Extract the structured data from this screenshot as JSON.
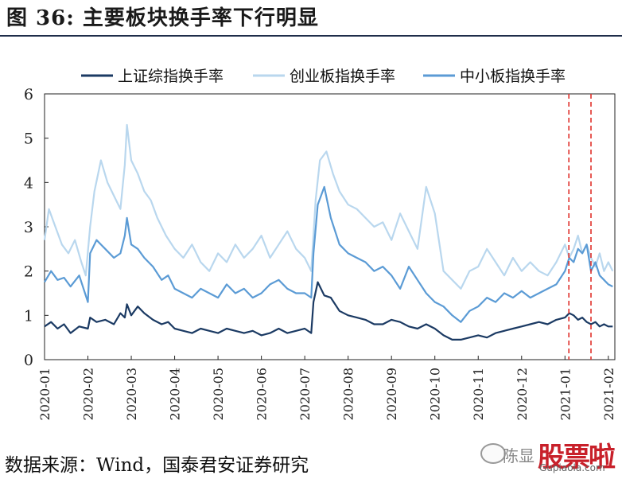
{
  "header": {
    "title": "图 36:  主要板块换手率下行明显"
  },
  "footer": {
    "source": "数据来源：Wind，国泰君安证券研究"
  },
  "watermark": {
    "name": "陈显",
    "logo": "股票啦",
    "url": "Gupiaola.com",
    "icon": "wechat-icon"
  },
  "colors": {
    "sh": "#1b3a63",
    "cy": "#b9d7ee",
    "zx": "#5b9bd5",
    "marker": "#e0302a"
  },
  "chart_data": {
    "type": "line",
    "xlabel": "",
    "ylabel": "",
    "ylim": [
      0,
      6
    ],
    "yticks": [
      "0",
      "1",
      "2",
      "3",
      "4",
      "5",
      "6"
    ],
    "xticks": [
      "2020-01",
      "2020-02",
      "2020-03",
      "2020-04",
      "2020-05",
      "2020-06",
      "2020-07",
      "2020-08",
      "2020-09",
      "2020-10",
      "2020-11",
      "2020-12",
      "2021-01",
      "2021-02"
    ],
    "legend_position": "top",
    "grid": false,
    "vertical_markers": [
      12.09,
      12.6
    ],
    "series": [
      {
        "name": "上证综指换手率",
        "color": "#1b3a63",
        "x": [
          0,
          0.15,
          0.3,
          0.45,
          0.6,
          0.8,
          1.0,
          1.05,
          1.2,
          1.4,
          1.6,
          1.75,
          1.85,
          1.9,
          2.0,
          2.15,
          2.3,
          2.5,
          2.7,
          2.85,
          3.0,
          3.2,
          3.4,
          3.6,
          3.8,
          4.0,
          4.2,
          4.4,
          4.6,
          4.8,
          5.0,
          5.2,
          5.4,
          5.6,
          5.8,
          6.0,
          6.15,
          6.2,
          6.3,
          6.45,
          6.6,
          6.8,
          7.0,
          7.2,
          7.4,
          7.6,
          7.8,
          8.0,
          8.2,
          8.4,
          8.6,
          8.8,
          9.0,
          9.2,
          9.4,
          9.6,
          9.8,
          10.0,
          10.2,
          10.4,
          10.6,
          10.8,
          11.0,
          11.2,
          11.4,
          11.6,
          11.8,
          12.0,
          12.1,
          12.2,
          12.3,
          12.4,
          12.5,
          12.6,
          12.7,
          12.8,
          12.9,
          13.0,
          13.1
        ],
        "values": [
          0.75,
          0.85,
          0.7,
          0.8,
          0.6,
          0.75,
          0.7,
          0.95,
          0.85,
          0.9,
          0.8,
          1.05,
          0.95,
          1.25,
          1.0,
          1.2,
          1.05,
          0.9,
          0.8,
          0.85,
          0.7,
          0.65,
          0.6,
          0.7,
          0.65,
          0.6,
          0.7,
          0.65,
          0.6,
          0.65,
          0.55,
          0.6,
          0.7,
          0.6,
          0.65,
          0.7,
          0.6,
          1.3,
          1.75,
          1.45,
          1.4,
          1.1,
          1.0,
          0.95,
          0.9,
          0.8,
          0.8,
          0.9,
          0.85,
          0.75,
          0.7,
          0.8,
          0.7,
          0.55,
          0.45,
          0.45,
          0.5,
          0.55,
          0.5,
          0.6,
          0.65,
          0.7,
          0.75,
          0.8,
          0.85,
          0.8,
          0.9,
          0.95,
          1.05,
          1.0,
          0.9,
          0.95,
          0.85,
          0.8,
          0.85,
          0.75,
          0.8,
          0.75,
          0.75
        ]
      },
      {
        "name": "创业板指换手率",
        "color": "#b9d7ee",
        "x": [
          0,
          0.1,
          0.25,
          0.4,
          0.55,
          0.7,
          0.85,
          0.95,
          1.05,
          1.15,
          1.3,
          1.45,
          1.6,
          1.75,
          1.85,
          1.9,
          2.0,
          2.15,
          2.3,
          2.45,
          2.6,
          2.8,
          3.0,
          3.2,
          3.4,
          3.6,
          3.8,
          4.0,
          4.2,
          4.4,
          4.6,
          4.8,
          5.0,
          5.2,
          5.4,
          5.6,
          5.8,
          6.0,
          6.15,
          6.25,
          6.35,
          6.5,
          6.65,
          6.8,
          7.0,
          7.2,
          7.4,
          7.6,
          7.8,
          8.0,
          8.2,
          8.4,
          8.6,
          8.8,
          9.0,
          9.2,
          9.4,
          9.6,
          9.8,
          10.0,
          10.2,
          10.4,
          10.6,
          10.8,
          11.0,
          11.2,
          11.4,
          11.6,
          11.8,
          12.0,
          12.1,
          12.2,
          12.3,
          12.4,
          12.5,
          12.6,
          12.7,
          12.8,
          12.9,
          13.0,
          13.1
        ],
        "values": [
          2.7,
          3.4,
          3.0,
          2.6,
          2.4,
          2.7,
          2.2,
          1.9,
          3.0,
          3.8,
          4.5,
          4.0,
          3.7,
          3.4,
          4.4,
          5.3,
          4.5,
          4.2,
          3.8,
          3.6,
          3.2,
          2.8,
          2.5,
          2.3,
          2.6,
          2.2,
          2.0,
          2.4,
          2.2,
          2.6,
          2.3,
          2.5,
          2.8,
          2.3,
          2.6,
          2.9,
          2.5,
          2.3,
          2.0,
          3.6,
          4.5,
          4.7,
          4.2,
          3.8,
          3.5,
          3.4,
          3.2,
          3.0,
          3.1,
          2.7,
          3.3,
          2.9,
          2.5,
          3.9,
          3.3,
          2.0,
          1.8,
          1.6,
          2.0,
          2.1,
          2.5,
          2.2,
          1.9,
          2.3,
          2.0,
          2.2,
          2.0,
          1.9,
          2.2,
          2.6,
          2.3,
          2.5,
          2.8,
          2.4,
          2.6,
          2.3,
          2.1,
          2.4,
          2.0,
          2.2,
          2.0
        ]
      },
      {
        "name": "中小板指换手率",
        "color": "#5b9bd5",
        "x": [
          0,
          0.15,
          0.3,
          0.45,
          0.6,
          0.8,
          1.0,
          1.05,
          1.2,
          1.4,
          1.6,
          1.75,
          1.85,
          1.9,
          2.0,
          2.15,
          2.3,
          2.5,
          2.7,
          2.85,
          3.0,
          3.2,
          3.4,
          3.6,
          3.8,
          4.0,
          4.2,
          4.4,
          4.6,
          4.8,
          5.0,
          5.2,
          5.4,
          5.6,
          5.8,
          6.0,
          6.15,
          6.2,
          6.3,
          6.45,
          6.6,
          6.8,
          7.0,
          7.2,
          7.4,
          7.6,
          7.8,
          8.0,
          8.2,
          8.4,
          8.6,
          8.8,
          9.0,
          9.2,
          9.4,
          9.6,
          9.8,
          10.0,
          10.2,
          10.4,
          10.6,
          10.8,
          11.0,
          11.2,
          11.4,
          11.6,
          11.8,
          12.0,
          12.1,
          12.2,
          12.3,
          12.4,
          12.5,
          12.6,
          12.7,
          12.8,
          12.9,
          13.0,
          13.1
        ],
        "values": [
          1.75,
          2.0,
          1.8,
          1.85,
          1.65,
          1.9,
          1.3,
          2.4,
          2.7,
          2.5,
          2.3,
          2.4,
          2.8,
          3.2,
          2.6,
          2.5,
          2.3,
          2.1,
          1.8,
          1.9,
          1.6,
          1.5,
          1.4,
          1.6,
          1.5,
          1.4,
          1.7,
          1.5,
          1.6,
          1.4,
          1.5,
          1.7,
          1.8,
          1.6,
          1.5,
          1.5,
          1.4,
          2.4,
          3.5,
          3.9,
          3.2,
          2.6,
          2.4,
          2.3,
          2.2,
          2.0,
          2.1,
          1.9,
          1.6,
          2.1,
          1.8,
          1.5,
          1.3,
          1.2,
          1.0,
          0.85,
          1.1,
          1.2,
          1.4,
          1.3,
          1.5,
          1.4,
          1.55,
          1.4,
          1.5,
          1.6,
          1.7,
          2.0,
          2.3,
          2.2,
          2.5,
          2.4,
          2.6,
          2.0,
          2.2,
          1.9,
          1.8,
          1.7,
          1.65
        ]
      }
    ]
  }
}
